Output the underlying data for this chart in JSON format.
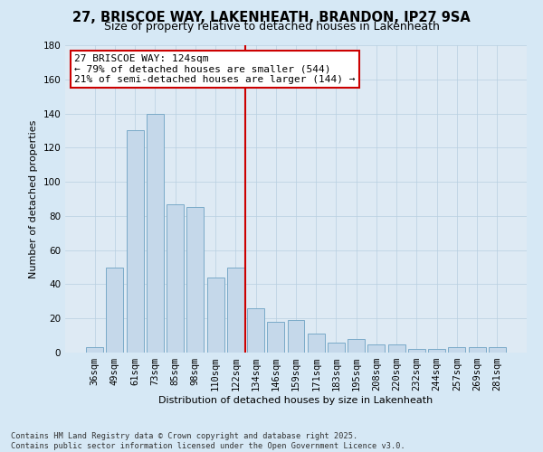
{
  "title": "27, BRISCOE WAY, LAKENHEATH, BRANDON, IP27 9SA",
  "subtitle": "Size of property relative to detached houses in Lakenheath",
  "xlabel": "Distribution of detached houses by size in Lakenheath",
  "ylabel": "Number of detached properties",
  "categories": [
    "36sqm",
    "49sqm",
    "61sqm",
    "73sqm",
    "85sqm",
    "98sqm",
    "110sqm",
    "122sqm",
    "134sqm",
    "146sqm",
    "159sqm",
    "171sqm",
    "183sqm",
    "195sqm",
    "208sqm",
    "220sqm",
    "232sqm",
    "244sqm",
    "257sqm",
    "269sqm",
    "281sqm"
  ],
  "values": [
    3,
    50,
    130,
    140,
    87,
    85,
    44,
    50,
    26,
    18,
    19,
    11,
    6,
    8,
    5,
    5,
    2,
    2,
    3,
    3,
    3
  ],
  "bar_color": "#c5d8ea",
  "bar_edge_color": "#7aaac8",
  "reference_line_index": 7,
  "reference_line_label": "27 BRISCOE WAY: 124sqm",
  "annotation_line1": "← 79% of detached houses are smaller (544)",
  "annotation_line2": "21% of semi-detached houses are larger (144) →",
  "annotation_box_color": "#ffffff",
  "annotation_box_edge": "#cc0000",
  "ref_line_color": "#cc0000",
  "ylim": [
    0,
    180
  ],
  "yticks": [
    0,
    20,
    40,
    60,
    80,
    100,
    120,
    140,
    160,
    180
  ],
  "background_color": "#d6e8f5",
  "plot_background_color": "#deeaf4",
  "grid_color": "#b8cfe0",
  "footer_text": "Contains HM Land Registry data © Crown copyright and database right 2025.\nContains public sector information licensed under the Open Government Licence v3.0.",
  "title_fontsize": 10.5,
  "subtitle_fontsize": 9,
  "axis_label_fontsize": 8,
  "tick_fontsize": 7.5,
  "annotation_fontsize": 8,
  "ylabel_fontsize": 8
}
